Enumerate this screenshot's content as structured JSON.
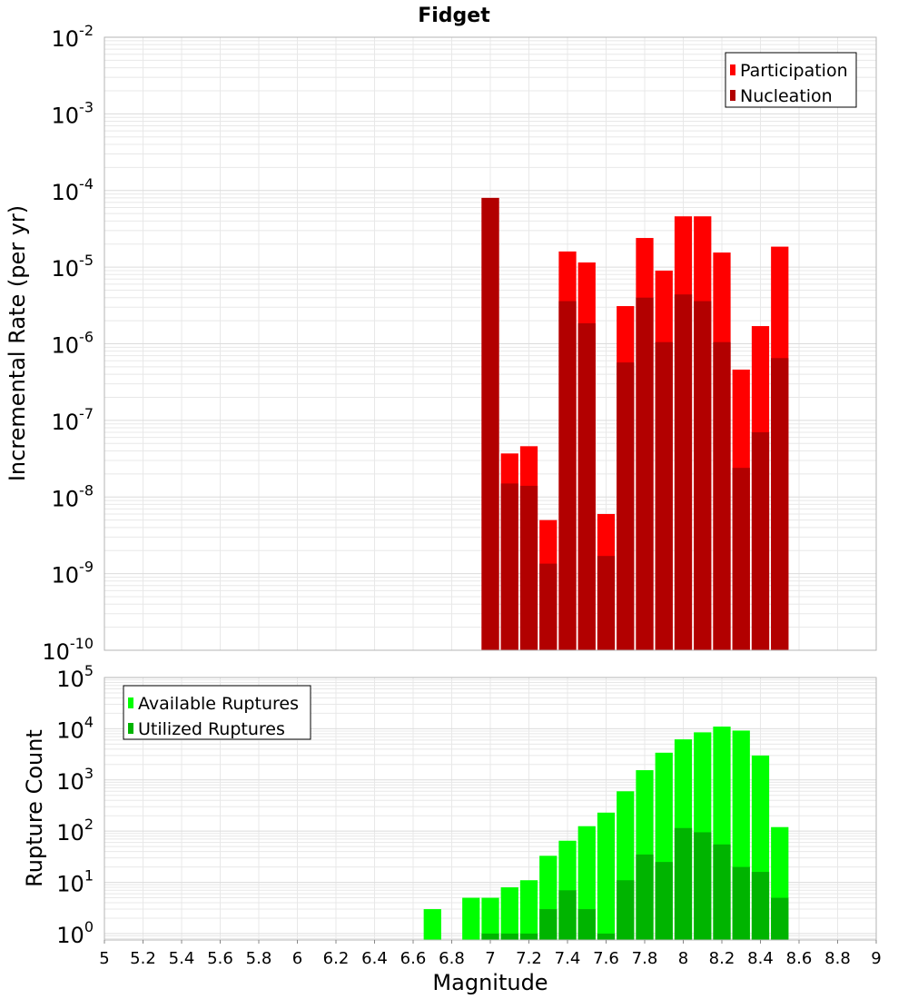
{
  "title": "Fidget",
  "colors": {
    "participation": "#ff0000",
    "nucleation": "#b20000",
    "available": "#00ff00",
    "utilized": "#00b400",
    "grid": "#e8e8e8",
    "frame": "#b4b4b4"
  },
  "chart_data": [
    {
      "type": "bar",
      "title": "Fidget",
      "xlabel": "Magnitude",
      "ylabel": "Incremental Rate (per yr)",
      "yscale": "log",
      "ylim": [
        1e-10,
        0.01
      ],
      "xlim": [
        5,
        9
      ],
      "grid": true,
      "legend_position": "top-right",
      "y_tick_labels": [
        {
          "base": "10",
          "exp": "-10"
        },
        {
          "base": "10",
          "exp": "-9"
        },
        {
          "base": "10",
          "exp": "-8"
        },
        {
          "base": "10",
          "exp": "-7"
        },
        {
          "base": "10",
          "exp": "-6"
        },
        {
          "base": "10",
          "exp": "-5"
        },
        {
          "base": "10",
          "exp": "-4"
        },
        {
          "base": "10",
          "exp": "-3"
        },
        {
          "base": "10",
          "exp": "-2"
        }
      ],
      "x": [
        7.0,
        7.1,
        7.2,
        7.3,
        7.4,
        7.5,
        7.6,
        7.7,
        7.8,
        7.9,
        8.0,
        8.1,
        8.2,
        8.3,
        8.4,
        8.5
      ],
      "series": [
        {
          "name": "Participation",
          "color": "#ff0000",
          "values": [
            8e-05,
            3.7e-08,
            4.6e-08,
            5e-09,
            1.6e-05,
            1.15e-05,
            6e-09,
            3.1e-06,
            2.4e-05,
            9e-06,
            4.6e-05,
            4.6e-05,
            1.55e-05,
            4.6e-07,
            1.7e-06,
            1.85e-05
          ]
        },
        {
          "name": "Nucleation",
          "color": "#b20000",
          "values": [
            8e-05,
            1.5e-08,
            1.4e-08,
            1.35e-09,
            3.6e-06,
            1.85e-06,
            1.7e-09,
            5.7e-07,
            4e-06,
            1.05e-06,
            4.4e-06,
            3.6e-06,
            1.05e-06,
            2.4e-08,
            7e-08,
            6.5e-07
          ]
        }
      ]
    },
    {
      "type": "bar",
      "xlabel": "Magnitude",
      "ylabel": "Rupture Count",
      "yscale": "log",
      "ylim": [
        0.75,
        100000
      ],
      "xlim": [
        5,
        9
      ],
      "grid": true,
      "legend_position": "top-left",
      "y_tick_labels": [
        {
          "base": "10",
          "exp": "0"
        },
        {
          "base": "10",
          "exp": "1"
        },
        {
          "base": "10",
          "exp": "2"
        },
        {
          "base": "10",
          "exp": "3"
        },
        {
          "base": "10",
          "exp": "4"
        },
        {
          "base": "10",
          "exp": "5"
        }
      ],
      "x_tick_labels": [
        "5",
        "5.2",
        "5.4",
        "5.6",
        "5.8",
        "6",
        "6.2",
        "6.4",
        "6.6",
        "6.8",
        "7",
        "7.2",
        "7.4",
        "7.6",
        "7.8",
        "8",
        "8.2",
        "8.4",
        "8.6",
        "8.8",
        "9"
      ],
      "x": [
        6.7,
        6.8,
        6.9,
        7.0,
        7.1,
        7.2,
        7.3,
        7.4,
        7.5,
        7.6,
        7.7,
        7.8,
        7.9,
        8.0,
        8.1,
        8.2,
        8.3,
        8.4,
        8.5
      ],
      "series": [
        {
          "name": "Available Ruptures",
          "color": "#00ff00",
          "values": [
            3,
            null,
            5,
            5,
            8,
            11,
            33,
            65,
            125,
            230,
            600,
            1550,
            3400,
            6200,
            8500,
            11000,
            9200,
            3000,
            120
          ]
        },
        {
          "name": "Utilized Ruptures",
          "color": "#00b400",
          "values": [
            null,
            null,
            null,
            1,
            1,
            1,
            3,
            7,
            3,
            1,
            11,
            35,
            25,
            115,
            95,
            55,
            20,
            16,
            5
          ]
        }
      ]
    }
  ]
}
